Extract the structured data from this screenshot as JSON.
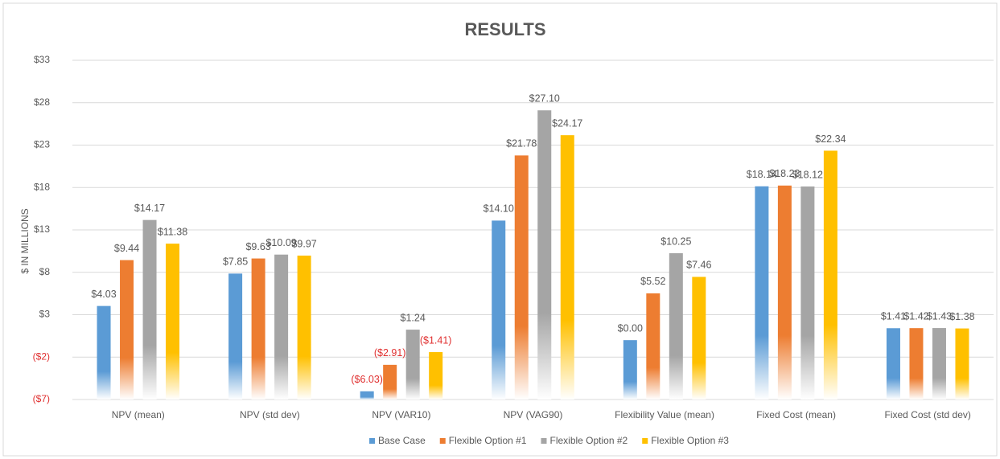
{
  "chart_data": {
    "type": "bar",
    "title": "RESULTS",
    "y_label": "$ IN MILLIONS",
    "categories": [
      "NPV (mean)",
      "NPV (std dev)",
      "NPV (VAR10)",
      "NPV (VAG90)",
      "Flexibility Value (mean)",
      "Fixed Cost (mean)",
      "Fixed Cost (std dev)"
    ],
    "series": [
      {
        "name": "Base Case",
        "color": "#5b9bd5",
        "values": [
          4.03,
          7.85,
          -6.03,
          14.1,
          0.0,
          18.14,
          1.41
        ],
        "value_labels": [
          "$4.03",
          "$7.85",
          "($6.03)",
          "$14.10",
          "$0.00",
          "$18.14",
          "$1.41"
        ]
      },
      {
        "name": "Flexible Option #1",
        "color": "#ed7d31",
        "values": [
          9.44,
          9.63,
          -2.91,
          21.78,
          5.52,
          18.23,
          1.42
        ],
        "value_labels": [
          "$9.44",
          "$9.63",
          "($2.91)",
          "$21.78",
          "$5.52",
          "$18.23",
          "$1.42"
        ]
      },
      {
        "name": "Flexible Option #2",
        "color": "#a5a5a5",
        "values": [
          14.17,
          10.09,
          1.24,
          27.1,
          10.25,
          18.12,
          1.43
        ],
        "value_labels": [
          "$14.17",
          "$10.09",
          "$1.24",
          "$27.10",
          "$10.25",
          "$18.12",
          "$1.43"
        ]
      },
      {
        "name": "Flexible Option #3",
        "color": "#ffc000",
        "values": [
          11.38,
          9.97,
          -1.41,
          24.17,
          7.46,
          22.34,
          1.38
        ],
        "value_labels": [
          "$11.38",
          "$9.97",
          "($1.41)",
          "$24.17",
          "$7.46",
          "$22.34",
          "$1.38"
        ]
      }
    ],
    "ylim": [
      -7,
      33
    ],
    "yticks": [
      {
        "value": -7,
        "label": "($7)"
      },
      {
        "value": -2,
        "label": "($2)"
      },
      {
        "value": 3,
        "label": "$3"
      },
      {
        "value": 8,
        "label": "$8"
      },
      {
        "value": 13,
        "label": "$13"
      },
      {
        "value": 18,
        "label": "$18"
      },
      {
        "value": 23,
        "label": "$23"
      },
      {
        "value": 28,
        "label": "$28"
      },
      {
        "value": 33,
        "label": "$33"
      }
    ],
    "grid": true,
    "legend": "bottom"
  }
}
